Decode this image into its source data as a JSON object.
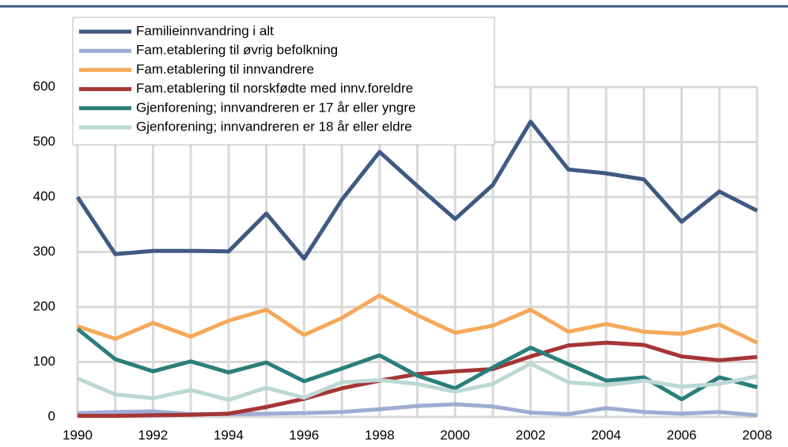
{
  "chart_data": {
    "type": "line",
    "x": [
      1990,
      1991,
      1992,
      1993,
      1994,
      1995,
      1996,
      1997,
      1998,
      1999,
      2000,
      2001,
      2002,
      2003,
      2004,
      2005,
      2006,
      2007,
      2008
    ],
    "series": [
      {
        "name": "Familieinnvandring i alt",
        "color": "#3f5a82",
        "values": [
          400,
          296,
          302,
          302,
          301,
          370,
          288,
          395,
          482,
          420,
          360,
          422,
          537,
          450,
          443,
          432,
          355,
          410,
          375
        ]
      },
      {
        "name": "Fam.etablering til øvrig befolkning",
        "color": "#9eacd4",
        "values": [
          7,
          9,
          10,
          5,
          5,
          6,
          7,
          9,
          14,
          20,
          23,
          19,
          8,
          5,
          16,
          9,
          6,
          9,
          3
        ]
      },
      {
        "name": "Fam.etablering til innvandrere",
        "color": "#f5a95a",
        "values": [
          165,
          142,
          171,
          146,
          175,
          195,
          149,
          180,
          221,
          185,
          153,
          166,
          195,
          155,
          169,
          155,
          151,
          168,
          135
        ]
      },
      {
        "name": "Fam.etablering til norskfødte med innv.foreldre",
        "color": "#a53535",
        "values": [
          2,
          2,
          3,
          4,
          6,
          18,
          33,
          52,
          66,
          78,
          83,
          87,
          110,
          130,
          135,
          131,
          110,
          103,
          109
        ]
      },
      {
        "name": "Gjenforening; innvandreren er 17 år eller yngre",
        "color": "#2a7f7a",
        "values": [
          160,
          105,
          83,
          101,
          81,
          99,
          65,
          88,
          112,
          75,
          52,
          90,
          126,
          96,
          66,
          72,
          32,
          72,
          54
        ]
      },
      {
        "name": "Gjenforening; innvandreren er 18 år eller eldre",
        "color": "#bcd8d4",
        "values": [
          70,
          41,
          34,
          49,
          31,
          53,
          35,
          63,
          67,
          60,
          46,
          60,
          97,
          63,
          58,
          66,
          55,
          60,
          74
        ]
      }
    ],
    "xlim": [
      1990,
      2008
    ],
    "xticks": [
      1990,
      1992,
      1994,
      1996,
      1998,
      2000,
      2002,
      2004,
      2006,
      2008
    ],
    "ylim": [
      0,
      600
    ],
    "yticks": [
      0,
      100,
      200,
      300,
      400,
      500,
      600
    ],
    "grid": true,
    "legend": "top-left"
  }
}
